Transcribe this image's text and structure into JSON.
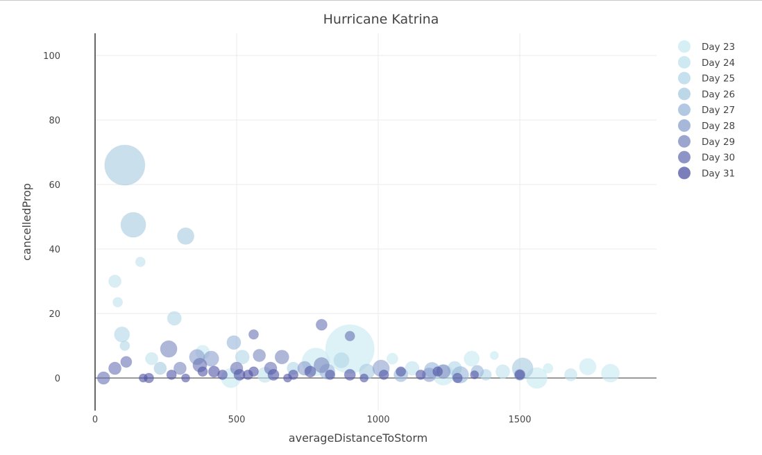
{
  "chart_data": {
    "type": "scatter",
    "title": "Hurricane Katrina",
    "xlabel": "averageDistanceToStorm",
    "ylabel": "cancelledProp",
    "xlim": [
      0,
      1980
    ],
    "ylim": [
      -10,
      107
    ],
    "x_ticks": [
      "0",
      "500",
      "1000",
      "1500"
    ],
    "y_ticks": [
      "0",
      "20",
      "40",
      "60",
      "80",
      "100"
    ],
    "grid": true,
    "legend_position": "top-right",
    "series": [
      {
        "name": "Day 23",
        "color": "#c7e9f0",
        "points": [
          {
            "x": 780,
            "y": 5,
            "s": 40
          },
          {
            "x": 900,
            "y": 9,
            "s": 70
          },
          {
            "x": 1050,
            "y": 6,
            "s": 16
          },
          {
            "x": 1330,
            "y": 6,
            "s": 22
          },
          {
            "x": 1410,
            "y": 7,
            "s": 12
          },
          {
            "x": 1600,
            "y": 3,
            "s": 14
          },
          {
            "x": 1740,
            "y": 3.5,
            "s": 24
          },
          {
            "x": 1820,
            "y": 1.5,
            "s": 26
          },
          {
            "x": 1560,
            "y": 0,
            "s": 30
          },
          {
            "x": 480,
            "y": 0,
            "s": 28
          },
          {
            "x": 380,
            "y": 8,
            "s": 20
          },
          {
            "x": 1230,
            "y": 1,
            "s": 30
          }
        ]
      },
      {
        "name": "Day 24",
        "color": "#bee1ec",
        "points": [
          {
            "x": 70,
            "y": 30,
            "s": 18
          },
          {
            "x": 80,
            "y": 23.5,
            "s": 14
          },
          {
            "x": 160,
            "y": 36,
            "s": 14
          },
          {
            "x": 200,
            "y": 6,
            "s": 18
          },
          {
            "x": 1680,
            "y": 1,
            "s": 18
          },
          {
            "x": 1440,
            "y": 2,
            "s": 20
          },
          {
            "x": 600,
            "y": 1,
            "s": 22
          },
          {
            "x": 1120,
            "y": 3,
            "s": 20
          }
        ]
      },
      {
        "name": "Day 25",
        "color": "#b1d6e8",
        "points": [
          {
            "x": 95,
            "y": 13.5,
            "s": 22
          },
          {
            "x": 105,
            "y": 10,
            "s": 14
          },
          {
            "x": 280,
            "y": 18.5,
            "s": 20
          },
          {
            "x": 520,
            "y": 6.5,
            "s": 20
          },
          {
            "x": 870,
            "y": 5.5,
            "s": 22
          },
          {
            "x": 1270,
            "y": 3,
            "s": 20
          },
          {
            "x": 1380,
            "y": 1,
            "s": 16
          },
          {
            "x": 700,
            "y": 3,
            "s": 18
          }
        ]
      },
      {
        "name": "Day 26",
        "color": "#a6c9df",
        "points": [
          {
            "x": 105,
            "y": 66,
            "s": 58
          },
          {
            "x": 135,
            "y": 47.5,
            "s": 36
          },
          {
            "x": 320,
            "y": 44,
            "s": 24
          },
          {
            "x": 1510,
            "y": 3,
            "s": 30
          },
          {
            "x": 960,
            "y": 2,
            "s": 22
          },
          {
            "x": 230,
            "y": 3,
            "s": 18
          }
        ]
      },
      {
        "name": "Day 27",
        "color": "#98b6d9",
        "points": [
          {
            "x": 490,
            "y": 11,
            "s": 20
          },
          {
            "x": 1290,
            "y": 1,
            "s": 24
          },
          {
            "x": 1190,
            "y": 2.5,
            "s": 22
          },
          {
            "x": 1080,
            "y": 1,
            "s": 20
          },
          {
            "x": 820,
            "y": 2,
            "s": 22
          },
          {
            "x": 1350,
            "y": 2,
            "s": 18
          }
        ]
      },
      {
        "name": "Day 28",
        "color": "#8a9fcd",
        "points": [
          {
            "x": 360,
            "y": 6.5,
            "s": 22
          },
          {
            "x": 410,
            "y": 6,
            "s": 22
          },
          {
            "x": 740,
            "y": 3,
            "s": 20
          },
          {
            "x": 1010,
            "y": 3,
            "s": 24
          },
          {
            "x": 1180,
            "y": 1,
            "s": 20
          },
          {
            "x": 1500,
            "y": 1,
            "s": 16
          }
        ]
      },
      {
        "name": "Day 29",
        "color": "#7a87be",
        "points": [
          {
            "x": 260,
            "y": 9,
            "s": 24
          },
          {
            "x": 580,
            "y": 7,
            "s": 18
          },
          {
            "x": 660,
            "y": 6.5,
            "s": 20
          },
          {
            "x": 800,
            "y": 4,
            "s": 22
          },
          {
            "x": 1230,
            "y": 2,
            "s": 20
          },
          {
            "x": 300,
            "y": 3,
            "s": 18
          }
        ]
      },
      {
        "name": "Day 30",
        "color": "#6872b3",
        "points": [
          {
            "x": 30,
            "y": 0,
            "s": 18
          },
          {
            "x": 70,
            "y": 3,
            "s": 18
          },
          {
            "x": 110,
            "y": 5,
            "s": 16
          },
          {
            "x": 560,
            "y": 13.5,
            "s": 14
          },
          {
            "x": 800,
            "y": 16.5,
            "s": 16
          },
          {
            "x": 900,
            "y": 13,
            "s": 14
          },
          {
            "x": 370,
            "y": 4,
            "s": 20
          },
          {
            "x": 500,
            "y": 3,
            "s": 18
          },
          {
            "x": 620,
            "y": 3,
            "s": 18
          }
        ]
      },
      {
        "name": "Day 31",
        "color": "#4e53a3",
        "points": [
          {
            "x": 170,
            "y": 0,
            "s": 12
          },
          {
            "x": 190,
            "y": 0,
            "s": 14
          },
          {
            "x": 270,
            "y": 1,
            "s": 14
          },
          {
            "x": 320,
            "y": 0,
            "s": 12
          },
          {
            "x": 380,
            "y": 2,
            "s": 14
          },
          {
            "x": 450,
            "y": 1,
            "s": 14
          },
          {
            "x": 510,
            "y": 1,
            "s": 16
          },
          {
            "x": 560,
            "y": 2,
            "s": 14
          },
          {
            "x": 630,
            "y": 1,
            "s": 16
          },
          {
            "x": 700,
            "y": 1,
            "s": 14
          },
          {
            "x": 760,
            "y": 2,
            "s": 16
          },
          {
            "x": 830,
            "y": 1,
            "s": 14
          },
          {
            "x": 900,
            "y": 1,
            "s": 16
          },
          {
            "x": 950,
            "y": 0,
            "s": 12
          },
          {
            "x": 1020,
            "y": 1,
            "s": 14
          },
          {
            "x": 1080,
            "y": 2,
            "s": 14
          },
          {
            "x": 1150,
            "y": 1,
            "s": 14
          },
          {
            "x": 1210,
            "y": 2,
            "s": 14
          },
          {
            "x": 1280,
            "y": 0,
            "s": 14
          },
          {
            "x": 1340,
            "y": 1,
            "s": 12
          },
          {
            "x": 1500,
            "y": 1,
            "s": 14
          },
          {
            "x": 420,
            "y": 2,
            "s": 16
          },
          {
            "x": 540,
            "y": 1,
            "s": 14
          },
          {
            "x": 680,
            "y": 0,
            "s": 12
          }
        ]
      }
    ]
  }
}
